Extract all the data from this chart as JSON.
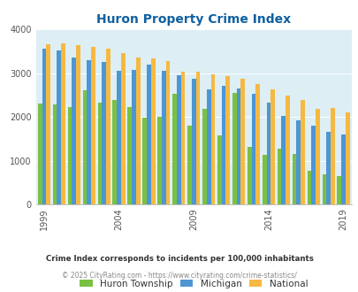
{
  "title": "Huron Property Crime Index",
  "title_color": "#1060a0",
  "years": [
    1999,
    2000,
    2001,
    2002,
    2003,
    2004,
    2005,
    2006,
    2007,
    2008,
    2009,
    2010,
    2011,
    2012,
    2013,
    2014,
    2015,
    2016,
    2017,
    2018,
    2019
  ],
  "huron": [
    2300,
    2290,
    2220,
    2600,
    2330,
    2390,
    2220,
    1970,
    2000,
    2520,
    1800,
    2180,
    1570,
    2540,
    1320,
    1130,
    1270,
    1150,
    760,
    680,
    650
  ],
  "michigan": [
    3560,
    3520,
    3350,
    3290,
    3250,
    3060,
    3080,
    3200,
    3060,
    2940,
    2870,
    2620,
    2700,
    2640,
    2520,
    2330,
    2030,
    1920,
    1800,
    1650,
    1600
  ],
  "national": [
    3650,
    3680,
    3640,
    3600,
    3550,
    3460,
    3350,
    3340,
    3270,
    3040,
    3040,
    2960,
    2930,
    2870,
    2750,
    2620,
    2490,
    2390,
    2190,
    2200,
    2100
  ],
  "color_huron": "#7ac143",
  "color_michigan": "#4d96d4",
  "color_national": "#f5b942",
  "bg_color": "#ddeef5",
  "ylim": [
    0,
    4000
  ],
  "yticks": [
    0,
    1000,
    2000,
    3000,
    4000
  ],
  "xlabel_ticks": [
    1999,
    2004,
    2009,
    2014,
    2019
  ],
  "legend_labels": [
    "Huron Township",
    "Michigan",
    "National"
  ],
  "footnote1": "Crime Index corresponds to incidents per 100,000 inhabitants",
  "footnote2": "© 2025 CityRating.com - https://www.cityrating.com/crime-statistics/",
  "footnote1_color": "#333333",
  "footnote2_color": "#888888"
}
